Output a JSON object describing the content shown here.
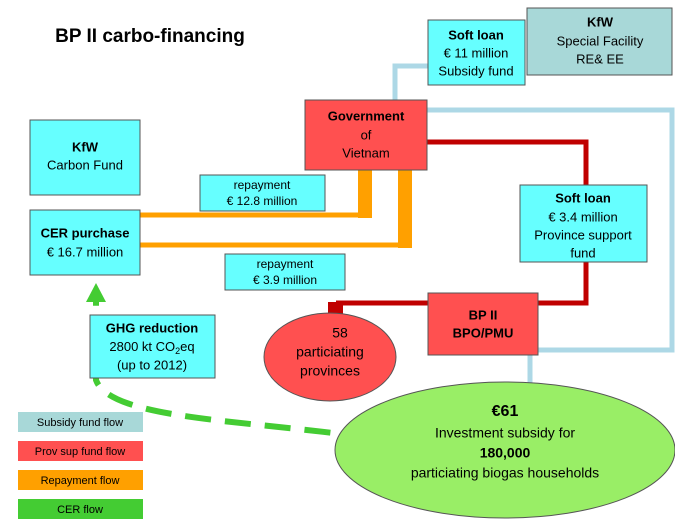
{
  "title": "BP II carbo-financing",
  "nodes": {
    "kfw_carbon": {
      "name": "KfW",
      "text": "Carbon Fund"
    },
    "cer": {
      "name": "CER purchase",
      "text": "€ 16.7 million"
    },
    "soft_loan_top": {
      "name": "Soft loan",
      "lines": [
        "€ 11 million",
        "Subsidy fund"
      ]
    },
    "kfw_special": {
      "name": "KfW",
      "lines": [
        "Special Facility",
        "RE& EE"
      ]
    },
    "government": {
      "name": "Government",
      "lines": [
        "of",
        "Vietnam"
      ]
    },
    "repayment_1": {
      "lines": [
        "repayment",
        "€ 12.8 million"
      ]
    },
    "repayment_2": {
      "lines": [
        "repayment",
        "€ 3.9 million"
      ]
    },
    "soft_loan_right": {
      "name": "Soft loan",
      "lines": [
        "€ 3.4 million",
        "Province support",
        "fund"
      ]
    },
    "bp2": {
      "lines": [
        "BP II",
        "BPO/PMU"
      ]
    },
    "provinces": {
      "lines": [
        "58",
        "particiating",
        "provinces"
      ]
    },
    "ghg": {
      "name": "GHG reduction",
      "co2": [
        "2800 kt CO",
        "2",
        "eq"
      ],
      "text": "(up to 2012)"
    },
    "investment": {
      "amount": "€61",
      "text": "Investment subsidy for",
      "households": "180,000",
      "text2": "particiating biogas households"
    }
  },
  "legend": [
    "Subsidy fund flow",
    "Prov sup fund flow",
    "Repayment flow",
    "CER flow"
  ]
}
